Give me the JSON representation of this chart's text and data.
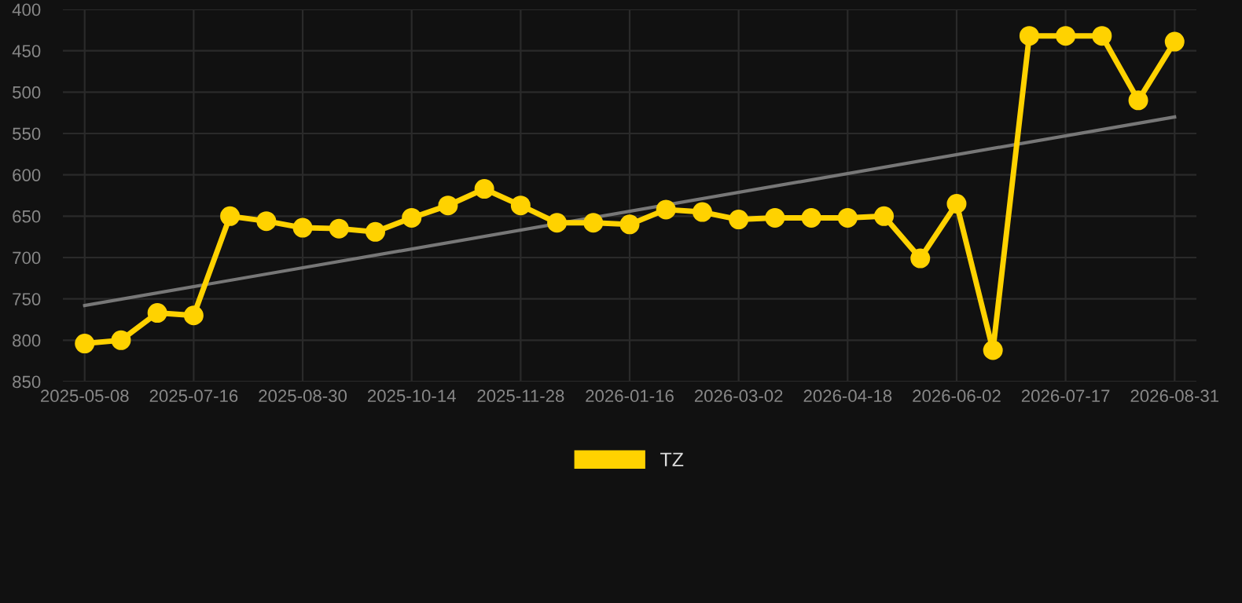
{
  "chart_data": {
    "type": "line",
    "categories": [
      "2025-05-08",
      null,
      null,
      "2025-07-16",
      null,
      null,
      "2025-08-30",
      null,
      null,
      "2025-10-14",
      null,
      null,
      "2025-11-28",
      null,
      null,
      "2026-01-16",
      null,
      null,
      "2026-03-02",
      null,
      null,
      "2026-04-18",
      null,
      null,
      "2026-06-02",
      null,
      null,
      "2026-07-17",
      null,
      null,
      "2026-08-31"
    ],
    "series": [
      {
        "name": "TZ",
        "color": "#ffd200",
        "marker": "circle",
        "values": [
          804,
          800,
          767,
          770,
          650,
          656,
          664,
          665,
          669,
          652,
          637,
          617,
          637,
          658,
          658,
          660,
          642,
          645,
          654,
          652,
          652,
          652,
          650,
          701,
          635,
          812,
          432,
          432,
          432,
          510,
          439
        ]
      },
      {
        "type": "line",
        "color": "#777777",
        "marker": "none",
        "values": [
          758,
          null,
          null,
          null,
          null,
          null,
          null,
          null,
          null,
          null,
          null,
          null,
          null,
          null,
          null,
          null,
          null,
          null,
          null,
          null,
          null,
          null,
          null,
          null,
          null,
          null,
          null,
          null,
          null,
          null,
          530
        ]
      }
    ],
    "ylim": [
      850,
      400
    ],
    "yticks": [
      400,
      450,
      500,
      550,
      600,
      650,
      700,
      750,
      800,
      850
    ],
    "grid": true,
    "legend": "bottom"
  }
}
